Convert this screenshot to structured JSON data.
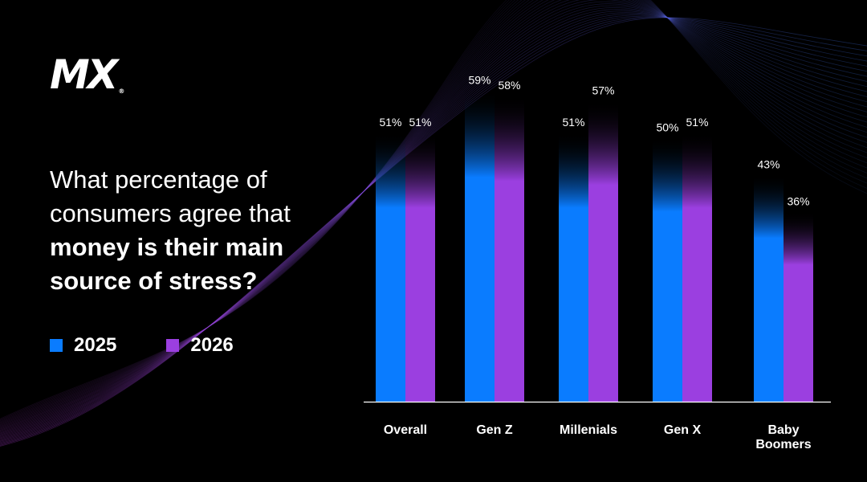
{
  "brand": {
    "logo_text": "MX",
    "registered_mark": "®"
  },
  "headline": {
    "light": "What percentage of consumers agree that",
    "bold": "money is their main source of stress?"
  },
  "legend": [
    {
      "label": "2025",
      "color": "#0a7cff"
    },
    {
      "label": "2026",
      "color": "#9b3fe0"
    }
  ],
  "chart_data": {
    "type": "bar",
    "categories": [
      {
        "label": "Overall",
        "lines": [
          "Overall"
        ]
      },
      {
        "label": "Gen Z",
        "lines": [
          "Gen Z"
        ]
      },
      {
        "label": "Millenials",
        "lines": [
          "Millenials"
        ]
      },
      {
        "label": "Gen X",
        "lines": [
          "Gen X"
        ]
      },
      {
        "label": "Baby Boomers",
        "lines": [
          "Baby",
          "Boomers"
        ]
      }
    ],
    "series": [
      {
        "name": "2025",
        "color": "#0a7cff",
        "values": [
          51,
          59,
          51,
          50,
          43
        ],
        "labels": [
          "51%",
          "59%",
          "51%",
          "50%",
          "43%"
        ]
      },
      {
        "name": "2026",
        "color": "#9b3fe0",
        "values": [
          51,
          58,
          57,
          51,
          36
        ],
        "labels": [
          "51%",
          "58%",
          "57%",
          "51%",
          "36%"
        ]
      }
    ],
    "ylim": [
      0,
      70
    ],
    "grid": false,
    "legend_position": "left"
  }
}
